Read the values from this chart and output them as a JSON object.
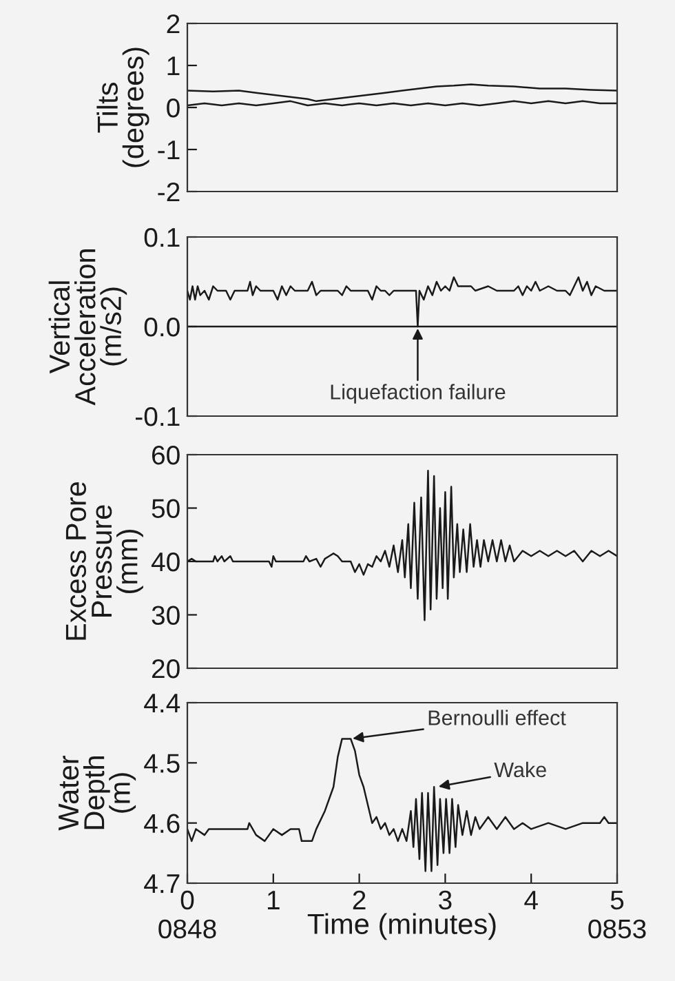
{
  "chart_data": [
    {
      "type": "line",
      "ylabel": "Tilts\n(degrees)",
      "xlim": [
        0,
        5
      ],
      "ylim": [
        -2,
        2
      ],
      "yticks": [
        -2,
        -1,
        0,
        1,
        2
      ],
      "tick_labels": "y",
      "grid": false,
      "series": [
        {
          "color": "#1a1a1a",
          "x": [
            0,
            0.3,
            0.6,
            0.8,
            1.0,
            1.2,
            1.4,
            1.5,
            1.7,
            1.9,
            2.1,
            2.3,
            2.5,
            2.7,
            2.9,
            3.1,
            3.3,
            3.5,
            3.8,
            4.1,
            4.4,
            4.7,
            5
          ],
          "values": [
            0.4,
            0.38,
            0.4,
            0.35,
            0.3,
            0.25,
            0.2,
            0.15,
            0.2,
            0.25,
            0.3,
            0.35,
            0.4,
            0.45,
            0.5,
            0.52,
            0.55,
            0.52,
            0.5,
            0.45,
            0.45,
            0.42,
            0.4
          ]
        },
        {
          "color": "#1a1a1a",
          "x": [
            0,
            0.2,
            0.4,
            0.6,
            0.8,
            1.0,
            1.2,
            1.4,
            1.6,
            1.8,
            2.0,
            2.2,
            2.4,
            2.6,
            2.8,
            3.0,
            3.2,
            3.4,
            3.6,
            3.8,
            4.0,
            4.2,
            4.4,
            4.6,
            4.8,
            5
          ],
          "values": [
            0.05,
            0.1,
            0.05,
            0.1,
            0.05,
            0.1,
            0.15,
            0.05,
            0.1,
            0.05,
            0.1,
            0.05,
            0.1,
            0.05,
            0.1,
            0.05,
            0.1,
            0.05,
            0.1,
            0.15,
            0.1,
            0.15,
            0.1,
            0.15,
            0.1,
            0.1
          ]
        }
      ]
    },
    {
      "type": "line",
      "ylabel": "Vertical\nAcceleration\n(m/s2)",
      "xlim": [
        0,
        5
      ],
      "ylim": [
        -0.1,
        0.1
      ],
      "yticks": [
        {
          "value": -0.1,
          "label": "-0.1"
        },
        {
          "value": 0,
          "label": "0.0"
        },
        {
          "value": 0.1,
          "label": "0.1"
        }
      ],
      "tick_labels": "y",
      "grid": false,
      "ref_lines": [
        {
          "axis": "y",
          "value": 0,
          "color": "#1a1a1a"
        }
      ],
      "annotations": [
        {
          "text": "Liquefaction failure",
          "x": 2.68,
          "y": 0.0
        }
      ],
      "series": [
        {
          "color": "#1a1a1a",
          "x": [
            0,
            0.03,
            0.06,
            0.09,
            0.12,
            0.15,
            0.2,
            0.25,
            0.3,
            0.35,
            0.45,
            0.5,
            0.55,
            0.7,
            0.73,
            0.76,
            0.8,
            0.85,
            1.0,
            1.05,
            1.1,
            1.15,
            1.2,
            1.25,
            1.4,
            1.45,
            1.5,
            1.55,
            1.75,
            1.8,
            1.85,
            1.9,
            2.1,
            2.15,
            2.2,
            2.25,
            2.3,
            2.35,
            2.4,
            2.6,
            2.66,
            2.68,
            2.7,
            2.75,
            2.8,
            2.85,
            2.9,
            2.95,
            3.0,
            3.05,
            3.1,
            3.15,
            3.3,
            3.35,
            3.5,
            3.6,
            3.65,
            3.8,
            3.85,
            3.9,
            3.95,
            4.0,
            4.05,
            4.1,
            4.2,
            4.3,
            4.4,
            4.45,
            4.5,
            4.55,
            4.6,
            4.65,
            4.7,
            4.75,
            4.85,
            5.0
          ],
          "values": [
            0.04,
            0.03,
            0.045,
            0.03,
            0.045,
            0.035,
            0.04,
            0.03,
            0.045,
            0.04,
            0.04,
            0.03,
            0.04,
            0.04,
            0.05,
            0.035,
            0.045,
            0.04,
            0.04,
            0.03,
            0.045,
            0.035,
            0.045,
            0.04,
            0.04,
            0.05,
            0.035,
            0.04,
            0.04,
            0.035,
            0.045,
            0.04,
            0.04,
            0.03,
            0.045,
            0.04,
            0.04,
            0.035,
            0.04,
            0.04,
            0.04,
            0.0,
            0.04,
            0.03,
            0.045,
            0.035,
            0.05,
            0.04,
            0.045,
            0.04,
            0.055,
            0.045,
            0.045,
            0.04,
            0.045,
            0.04,
            0.04,
            0.04,
            0.045,
            0.035,
            0.045,
            0.04,
            0.05,
            0.04,
            0.045,
            0.04,
            0.04,
            0.035,
            0.045,
            0.055,
            0.04,
            0.05,
            0.035,
            0.045,
            0.04,
            0.04
          ]
        }
      ]
    },
    {
      "type": "line",
      "ylabel": "Excess Pore\nPressure\n(mm)",
      "xlim": [
        0,
        5
      ],
      "ylim": [
        20,
        60
      ],
      "yticks": [
        20,
        30,
        40,
        50,
        60
      ],
      "tick_labels": "y",
      "grid": false,
      "series": [
        {
          "color": "#1a1a1a",
          "x": [
            0,
            0.05,
            0.1,
            0.3,
            0.32,
            0.35,
            0.4,
            0.43,
            0.5,
            0.53,
            0.95,
            0.98,
            1.0,
            1.03,
            1.35,
            1.38,
            1.42,
            1.5,
            1.55,
            1.6,
            1.65,
            1.7,
            1.75,
            1.8,
            1.9,
            1.95,
            2.0,
            2.05,
            2.1,
            2.15,
            2.2,
            2.25,
            2.3,
            2.35,
            2.4,
            2.45,
            2.5,
            2.53,
            2.57,
            2.6,
            2.64,
            2.68,
            2.72,
            2.76,
            2.8,
            2.83,
            2.87,
            2.9,
            2.94,
            2.97,
            3.0,
            3.03,
            3.07,
            3.1,
            3.14,
            3.17,
            3.21,
            3.25,
            3.29,
            3.33,
            3.37,
            3.41,
            3.45,
            3.5,
            3.55,
            3.6,
            3.65,
            3.7,
            3.75,
            3.8,
            3.9,
            4.0,
            4.1,
            4.2,
            4.3,
            4.4,
            4.5,
            4.6,
            4.7,
            4.8,
            4.9,
            5.0
          ],
          "values": [
            40,
            40.5,
            40,
            40,
            41,
            40,
            41,
            40,
            41,
            40,
            40,
            39,
            41,
            40,
            40,
            41,
            40,
            40.5,
            39,
            40.5,
            41,
            41.5,
            41,
            40,
            40,
            38,
            39.5,
            37.5,
            39.5,
            39,
            41,
            40,
            42,
            39,
            43,
            38,
            44,
            37,
            47,
            35,
            51,
            33,
            52,
            29,
            57,
            31,
            56,
            33,
            50,
            35,
            53,
            33,
            54,
            37,
            47,
            38,
            46,
            38,
            47,
            39,
            44,
            39,
            44,
            40,
            44,
            40,
            44,
            40,
            43,
            40,
            42,
            41,
            42,
            41,
            42,
            41,
            42,
            40,
            42,
            41,
            42,
            41
          ]
        }
      ]
    },
    {
      "type": "line",
      "ylabel": "Water\nDepth\n(m)",
      "xlabel": "Time (minutes)",
      "xlim": [
        0,
        5
      ],
      "ylim": [
        4.7,
        4.4
      ],
      "yticks": [
        4.4,
        4.5,
        4.6,
        4.7
      ],
      "xticks": [
        {
          "value": 0,
          "label": "0\n0848"
        },
        1,
        2,
        3,
        4,
        {
          "value": 5,
          "label": "5\n0853"
        }
      ],
      "grid": false,
      "annotations": [
        {
          "text": "Bernoulli effect",
          "x": 1.9,
          "y": 4.46
        },
        {
          "text": "Wake",
          "x": 2.9,
          "y": 4.54
        }
      ],
      "series": [
        {
          "color": "#1a1a1a",
          "x": [
            0,
            0.05,
            0.1,
            0.2,
            0.25,
            0.7,
            0.72,
            0.8,
            0.9,
            1.0,
            1.1,
            1.2,
            1.3,
            1.33,
            1.45,
            1.5,
            1.6,
            1.7,
            1.75,
            1.8,
            1.9,
            1.95,
            2.0,
            2.05,
            2.1,
            2.15,
            2.2,
            2.25,
            2.3,
            2.35,
            2.4,
            2.45,
            2.5,
            2.55,
            2.6,
            2.63,
            2.66,
            2.7,
            2.73,
            2.77,
            2.8,
            2.84,
            2.87,
            2.91,
            2.94,
            2.98,
            3.01,
            3.05,
            3.08,
            3.12,
            3.15,
            3.2,
            3.25,
            3.3,
            3.35,
            3.4,
            3.5,
            3.6,
            3.7,
            3.8,
            3.9,
            4.0,
            4.2,
            4.4,
            4.6,
            4.8,
            4.85,
            4.9,
            5.0
          ],
          "values": [
            4.61,
            4.63,
            4.61,
            4.62,
            4.61,
            4.61,
            4.6,
            4.62,
            4.63,
            4.61,
            4.62,
            4.61,
            4.61,
            4.63,
            4.63,
            4.61,
            4.58,
            4.54,
            4.49,
            4.46,
            4.46,
            4.48,
            4.52,
            4.54,
            4.57,
            4.6,
            4.59,
            4.61,
            4.6,
            4.62,
            4.61,
            4.63,
            4.61,
            4.63,
            4.58,
            4.64,
            4.56,
            4.66,
            4.55,
            4.68,
            4.55,
            4.68,
            4.54,
            4.67,
            4.56,
            4.65,
            4.56,
            4.65,
            4.56,
            4.64,
            4.57,
            4.62,
            4.58,
            4.62,
            4.59,
            4.61,
            4.59,
            4.61,
            4.59,
            4.61,
            4.6,
            4.61,
            4.6,
            4.61,
            4.6,
            4.6,
            4.59,
            4.6,
            4.6
          ]
        }
      ]
    }
  ]
}
